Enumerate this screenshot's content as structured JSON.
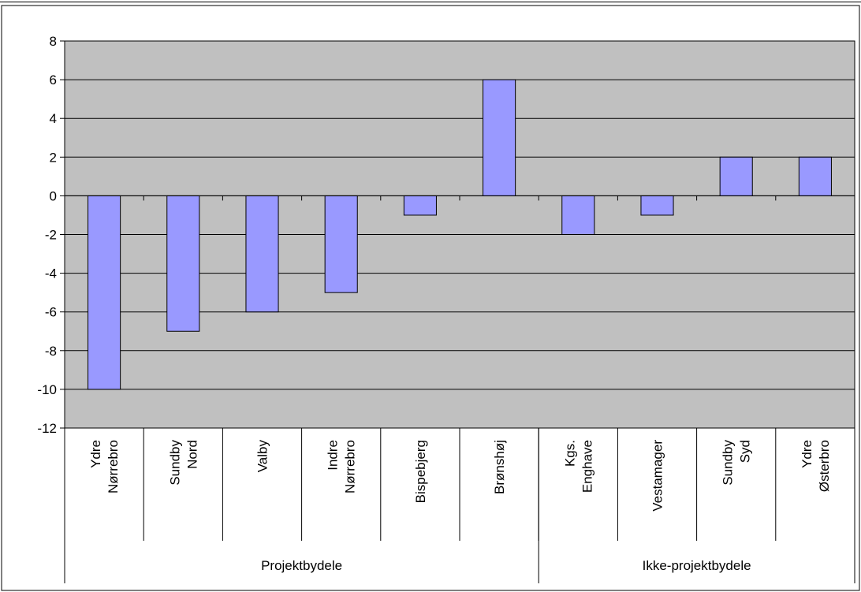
{
  "chart_data": {
    "type": "bar",
    "title": "",
    "xlabel": "",
    "ylabel": "",
    "ylim": [
      -12,
      8
    ],
    "yticks": [
      8,
      6,
      4,
      2,
      0,
      -2,
      -4,
      -6,
      -8,
      -10,
      -12
    ],
    "ytick_labels": [
      "8",
      "6",
      "4",
      "2",
      "0",
      "-2",
      "-4",
      "-6",
      "-8",
      "-10",
      "-12"
    ],
    "grid": true,
    "legend": "none",
    "categories": [
      {
        "lines": [
          "Ydre",
          "Nørrebro"
        ]
      },
      {
        "lines": [
          "Sundby",
          "Nord"
        ]
      },
      {
        "lines": [
          "Valby"
        ]
      },
      {
        "lines": [
          "Indre",
          "Nørrebro"
        ]
      },
      {
        "lines": [
          "Bispebjerg"
        ]
      },
      {
        "lines": [
          "Brønshøj"
        ]
      },
      {
        "lines": [
          "Kgs.",
          "Enghave"
        ]
      },
      {
        "lines": [
          "Vestamager"
        ]
      },
      {
        "lines": [
          "Sundby",
          "Syd"
        ]
      },
      {
        "lines": [
          "Ydre",
          "Østerbro"
        ]
      }
    ],
    "values": [
      -10,
      -7,
      -6,
      -5,
      -1,
      6,
      -2,
      -1,
      2,
      2
    ],
    "groups": [
      {
        "label": "Projektbydele",
        "start": 0,
        "end": 5
      },
      {
        "label": "Ikke-projektbydele",
        "start": 6,
        "end": 9
      }
    ],
    "colors": {
      "bar": "#9999ff",
      "plot_background": "#c0c0c0",
      "gridline": "#000000",
      "border": "#000000"
    }
  }
}
